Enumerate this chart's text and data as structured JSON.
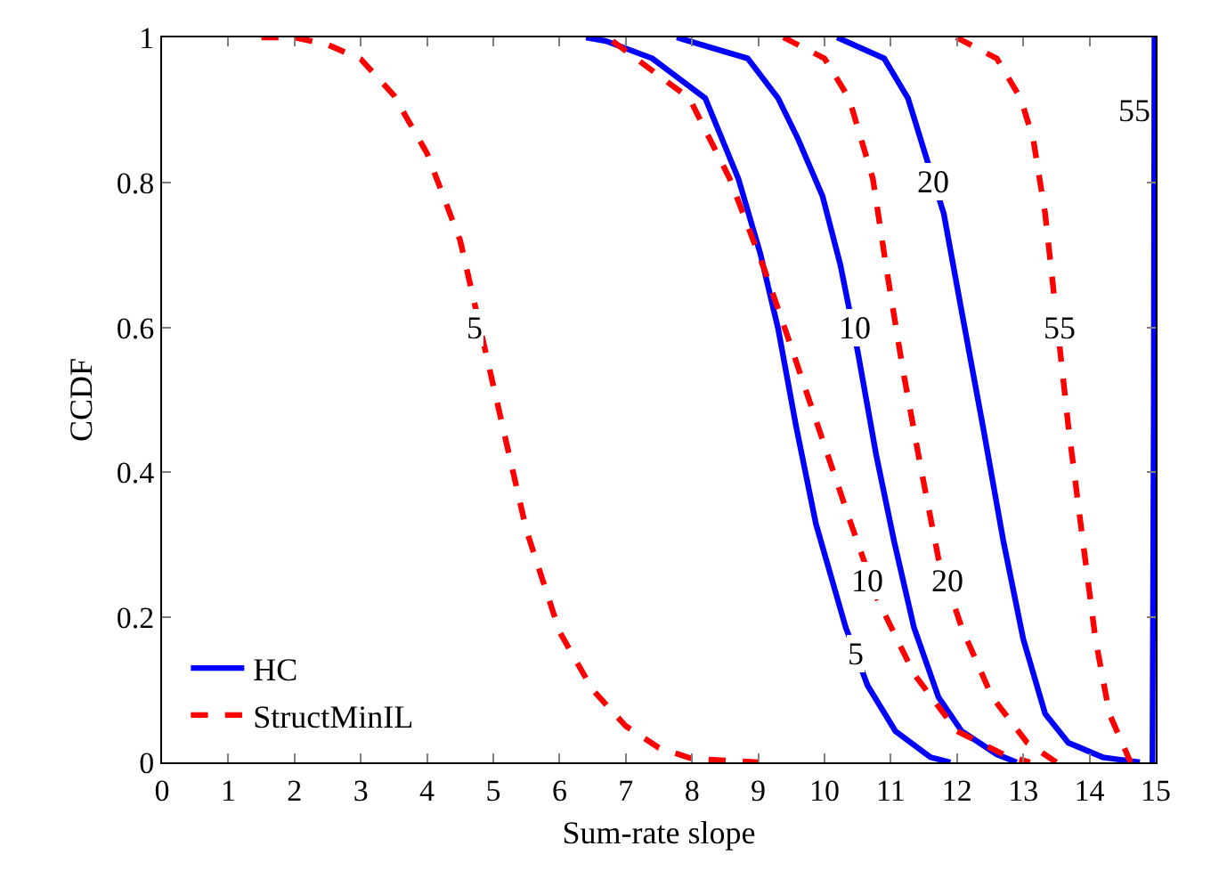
{
  "chart_data": {
    "type": "line",
    "xlabel": "Sum-rate slope",
    "ylabel": "CCDF",
    "xlim": [
      0,
      15
    ],
    "xticks": [
      0,
      1,
      2,
      3,
      4,
      5,
      6,
      7,
      8,
      9,
      10,
      11,
      12,
      13,
      14,
      15
    ],
    "ylim": [
      0,
      1
    ],
    "yticks": [
      0,
      0.2,
      0.4,
      0.6,
      0.8,
      1
    ],
    "legend": "bottom left",
    "marker": "none",
    "series": [
      {
        "name": "HC",
        "color": "#0000ff",
        "line_style": "solid",
        "x": [
          6.4,
          6.7,
          7.4,
          8.2,
          8.7,
          9.03,
          9.3,
          9.57,
          9.87,
          10.32,
          10.65,
          11.07,
          11.6,
          11.9
        ],
        "values": [
          1,
          0.995,
          0.971,
          0.916,
          0.805,
          0.702,
          0.598,
          0.464,
          0.329,
          0.186,
          0.106,
          0.043,
          0.007,
          0
        ]
      },
      {
        "color": "#0000ff",
        "line_style": "solid",
        "x": [
          7.77,
          8.84,
          9.3,
          9.6,
          9.97,
          10.24,
          10.5,
          10.78,
          11.05,
          11.35,
          11.72,
          12.07,
          12.6,
          12.9
        ],
        "values": [
          1,
          0.971,
          0.916,
          0.86,
          0.781,
          0.686,
          0.567,
          0.424,
          0.305,
          0.186,
          0.09,
          0.043,
          0.011,
          0
        ]
      },
      {
        "color": "#0000ff",
        "line_style": "solid",
        "x": [
          10.19,
          10.9,
          11.26,
          11.53,
          11.8,
          12.07,
          12.39,
          12.7,
          13.0,
          13.33,
          13.68,
          14.2,
          14.76
        ],
        "values": [
          1,
          0.971,
          0.916,
          0.836,
          0.757,
          0.622,
          0.464,
          0.305,
          0.17,
          0.067,
          0.027,
          0.007,
          0
        ]
      },
      {
        "color": "#0000ff",
        "line_style": "solid",
        "x": [
          14.95,
          14.97,
          14.98
        ],
        "values": [
          0,
          0.5,
          1
        ]
      },
      {
        "name": "StructMinIL",
        "color": "#ff0000",
        "line_style": "dashed",
        "x": [
          1.5,
          2,
          2.5,
          3,
          3.5,
          4,
          4.5,
          5,
          5.25,
          5.5,
          5.75,
          6,
          6.5,
          7,
          7.5,
          8,
          9
        ],
        "values": [
          1,
          1,
          0.99,
          0.97,
          0.92,
          0.84,
          0.72,
          0.52,
          0.42,
          0.32,
          0.25,
          0.18,
          0.1,
          0.05,
          0.02,
          0.005,
          0
        ]
      },
      {
        "color": "#ff0000",
        "line_style": "dashed",
        "x": [
          6.8,
          7.96,
          8.57,
          9.1,
          9.46,
          9.9,
          10.4,
          10.8,
          11.35,
          12.0,
          12.7,
          13.1
        ],
        "values": [
          0.995,
          0.916,
          0.805,
          0.678,
          0.583,
          0.464,
          0.329,
          0.225,
          0.122,
          0.043,
          0.011,
          0
        ]
      },
      {
        "color": "#ff0000",
        "line_style": "dashed",
        "x": [
          9.38,
          10.0,
          10.37,
          10.73,
          10.94,
          11.18,
          11.45,
          11.72,
          12.07,
          12.53,
          13.06,
          13.5
        ],
        "values": [
          1,
          0.971,
          0.916,
          0.805,
          0.678,
          0.543,
          0.408,
          0.281,
          0.186,
          0.09,
          0.027,
          0
        ]
      },
      {
        "color": "#ff0000",
        "line_style": "dashed",
        "x": [
          11.99,
          12.6,
          12.96,
          13.15,
          13.33,
          13.68,
          13.9,
          14.09,
          14.3,
          14.62
        ],
        "values": [
          1,
          0.971,
          0.916,
          0.86,
          0.757,
          0.464,
          0.305,
          0.17,
          0.067,
          0
        ]
      }
    ],
    "annotations": [
      {
        "text": "5",
        "x": 4.73,
        "y": 0.6
      },
      {
        "text": "5",
        "x": 10.46,
        "y": 0.15
      },
      {
        "text": "10",
        "x": 10.46,
        "y": 0.6
      },
      {
        "text": "10",
        "x": 10.65,
        "y": 0.25
      },
      {
        "text": "20",
        "x": 11.85,
        "y": 0.25
      },
      {
        "text": "20",
        "x": 11.64,
        "y": 0.8
      },
      {
        "text": "55",
        "x": 13.55,
        "y": 0.6
      },
      {
        "text": "55",
        "x": 14.68,
        "y": 0.9
      }
    ]
  }
}
